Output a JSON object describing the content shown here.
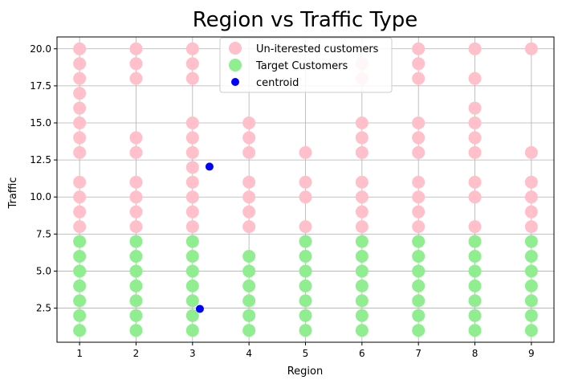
{
  "chart_data": {
    "type": "scatter",
    "title": "Region vs Traffic Type",
    "xlabel": "Region",
    "ylabel": "Traffic",
    "xlim": [
      0.6,
      9.4
    ],
    "ylim": [
      0.2,
      20.8
    ],
    "xticks": [
      1,
      2,
      3,
      4,
      5,
      6,
      7,
      8,
      9
    ],
    "yticks": [
      2.5,
      5.0,
      7.5,
      10.0,
      12.5,
      15.0,
      17.5,
      20.0
    ],
    "ytick_labels": [
      "2.5",
      "5.0",
      "7.5",
      "10.0",
      "12.5",
      "15.0",
      "17.5",
      "20.0"
    ],
    "grid": true,
    "legend_position": "top-center",
    "series": [
      {
        "name": "Un-iterested customers",
        "color": "#ffc0cb",
        "points": [
          [
            1,
            8
          ],
          [
            1,
            9
          ],
          [
            1,
            10
          ],
          [
            1,
            11
          ],
          [
            1,
            13
          ],
          [
            1,
            14
          ],
          [
            1,
            15
          ],
          [
            1,
            16
          ],
          [
            1,
            17
          ],
          [
            1,
            18
          ],
          [
            1,
            19
          ],
          [
            1,
            20
          ],
          [
            2,
            8
          ],
          [
            2,
            9
          ],
          [
            2,
            10
          ],
          [
            2,
            11
          ],
          [
            2,
            13
          ],
          [
            2,
            14
          ],
          [
            2,
            18
          ],
          [
            2,
            19
          ],
          [
            2,
            20
          ],
          [
            3,
            8
          ],
          [
            3,
            9
          ],
          [
            3,
            10
          ],
          [
            3,
            11
          ],
          [
            3,
            12
          ],
          [
            3,
            13
          ],
          [
            3,
            14
          ],
          [
            3,
            15
          ],
          [
            3,
            18
          ],
          [
            3,
            19
          ],
          [
            3,
            20
          ],
          [
            4,
            8
          ],
          [
            4,
            9
          ],
          [
            4,
            10
          ],
          [
            4,
            11
          ],
          [
            4,
            13
          ],
          [
            4,
            14
          ],
          [
            4,
            15
          ],
          [
            5,
            8
          ],
          [
            5,
            10
          ],
          [
            5,
            11
          ],
          [
            5,
            13
          ],
          [
            6,
            8
          ],
          [
            6,
            9
          ],
          [
            6,
            10
          ],
          [
            6,
            11
          ],
          [
            6,
            13
          ],
          [
            6,
            14
          ],
          [
            6,
            15
          ],
          [
            6,
            18
          ],
          [
            6,
            19
          ],
          [
            7,
            8
          ],
          [
            7,
            9
          ],
          [
            7,
            10
          ],
          [
            7,
            11
          ],
          [
            7,
            13
          ],
          [
            7,
            14
          ],
          [
            7,
            15
          ],
          [
            7,
            18
          ],
          [
            7,
            19
          ],
          [
            7,
            20
          ],
          [
            8,
            8
          ],
          [
            8,
            10
          ],
          [
            8,
            11
          ],
          [
            8,
            13
          ],
          [
            8,
            14
          ],
          [
            8,
            15
          ],
          [
            8,
            16
          ],
          [
            8,
            18
          ],
          [
            8,
            20
          ],
          [
            9,
            8
          ],
          [
            9,
            9
          ],
          [
            9,
            10
          ],
          [
            9,
            11
          ],
          [
            9,
            13
          ],
          [
            9,
            20
          ]
        ]
      },
      {
        "name": "Target Customers",
        "color": "#90ee90",
        "points": [
          [
            1,
            1
          ],
          [
            1,
            2
          ],
          [
            1,
            3
          ],
          [
            1,
            4
          ],
          [
            1,
            5
          ],
          [
            1,
            6
          ],
          [
            1,
            7
          ],
          [
            2,
            1
          ],
          [
            2,
            2
          ],
          [
            2,
            3
          ],
          [
            2,
            4
          ],
          [
            2,
            5
          ],
          [
            2,
            6
          ],
          [
            2,
            7
          ],
          [
            3,
            1
          ],
          [
            3,
            2
          ],
          [
            3,
            3
          ],
          [
            3,
            4
          ],
          [
            3,
            5
          ],
          [
            3,
            6
          ],
          [
            3,
            7
          ],
          [
            4,
            1
          ],
          [
            4,
            2
          ],
          [
            4,
            3
          ],
          [
            4,
            4
          ],
          [
            4,
            5
          ],
          [
            4,
            6
          ],
          [
            5,
            1
          ],
          [
            5,
            2
          ],
          [
            5,
            3
          ],
          [
            5,
            4
          ],
          [
            5,
            5
          ],
          [
            5,
            6
          ],
          [
            5,
            7
          ],
          [
            6,
            1
          ],
          [
            6,
            2
          ],
          [
            6,
            3
          ],
          [
            6,
            4
          ],
          [
            6,
            5
          ],
          [
            6,
            6
          ],
          [
            6,
            7
          ],
          [
            7,
            1
          ],
          [
            7,
            2
          ],
          [
            7,
            3
          ],
          [
            7,
            4
          ],
          [
            7,
            5
          ],
          [
            7,
            6
          ],
          [
            7,
            7
          ],
          [
            8,
            1
          ],
          [
            8,
            2
          ],
          [
            8,
            3
          ],
          [
            8,
            4
          ],
          [
            8,
            5
          ],
          [
            8,
            6
          ],
          [
            8,
            7
          ],
          [
            9,
            1
          ],
          [
            9,
            2
          ],
          [
            9,
            3
          ],
          [
            9,
            4
          ],
          [
            9,
            5
          ],
          [
            9,
            6
          ],
          [
            9,
            7
          ]
        ]
      },
      {
        "name": "centroid",
        "color": "#0000ff",
        "points": [
          [
            3.3,
            12.05
          ],
          [
            3.13,
            2.45
          ]
        ]
      }
    ]
  }
}
